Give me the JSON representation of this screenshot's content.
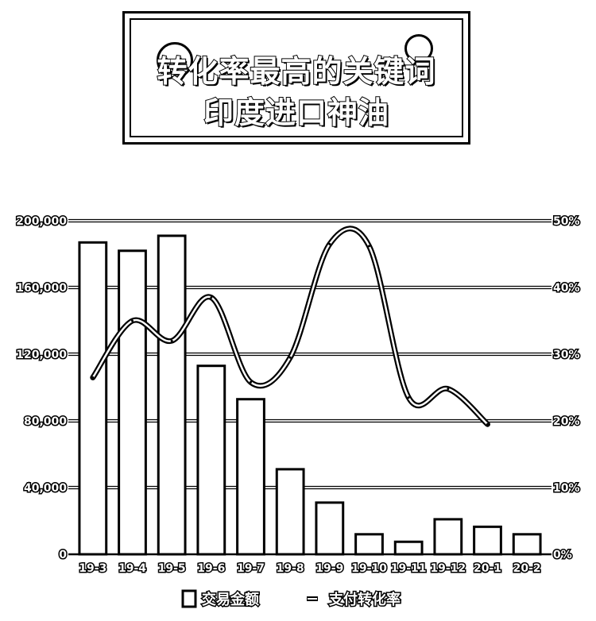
{
  "header": {
    "title_line1": "转化率最高的关键词",
    "title_line2": "印度进口神油"
  },
  "chart_data": {
    "type": "bar",
    "categories": [
      "19-3",
      "19-4",
      "19-5",
      "19-6",
      "19-7",
      "19-8",
      "19-9",
      "19-10",
      "19-11",
      "19-12",
      "20-1",
      "20-2"
    ],
    "series": [
      {
        "name": "交易金额",
        "type": "bar",
        "axis": "left",
        "values": [
          187000,
          182000,
          191000,
          113000,
          93000,
          51000,
          31000,
          12000,
          7500,
          21000,
          16500,
          12000
        ]
      },
      {
        "name": "支付转化率",
        "type": "line",
        "axis": "right",
        "values": [
          26.5,
          35,
          32,
          38.5,
          25.8,
          29.5,
          46.5,
          46.2,
          23.5,
          24.8,
          19.5,
          null
        ]
      }
    ],
    "left_axis": {
      "ylim": [
        0,
        200000
      ],
      "ticks": [
        0,
        40000,
        80000,
        120000,
        160000,
        200000
      ],
      "tick_labels": [
        "0",
        "40,000",
        "80,000",
        "120,000",
        "160,000",
        "200,000"
      ]
    },
    "right_axis": {
      "ylim": [
        0,
        50
      ],
      "ticks": [
        0,
        10,
        20,
        30,
        40,
        50
      ],
      "tick_labels": [
        "0%",
        "10%",
        "20%",
        "30%",
        "40%",
        "50%"
      ]
    },
    "grid": true,
    "legend": {
      "position": "bottom",
      "items": [
        "交易金额",
        "支付转化率"
      ]
    }
  }
}
